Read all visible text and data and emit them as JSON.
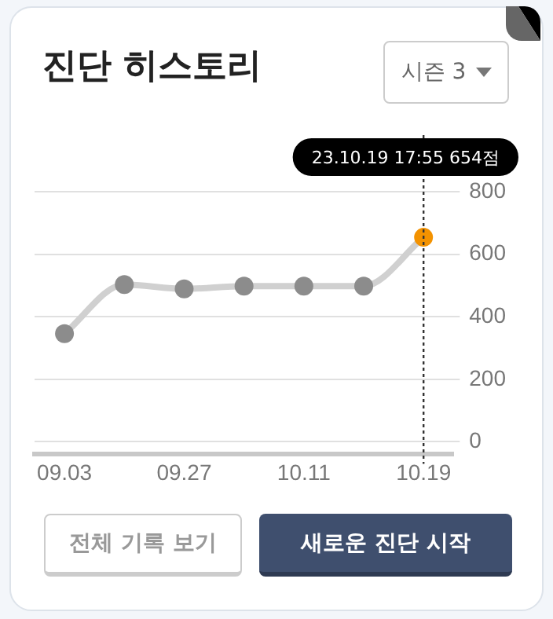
{
  "chart_data": {
    "type": "line",
    "title": "진단 히스토리",
    "subtitle": "시즌 3",
    "categories": [
      "09.03",
      null,
      "09.27",
      null,
      "10.11",
      null,
      "10.19"
    ],
    "series": [
      {
        "color": "#d0d0d0",
        "colors": [
          "#8c8c8c",
          "#8c8c8c",
          "#8c8c8c",
          "#8c8c8c",
          "#8c8c8c",
          "#8c8c8c",
          "#f39200"
        ],
        "values": [
          346,
          503,
          489,
          498,
          498,
          498,
          654
        ]
      }
    ],
    "ylim": [
      -40,
      800
    ],
    "yticks": [
      0,
      200,
      400,
      600,
      800
    ],
    "grid": "y",
    "legend": false,
    "marker": "circle",
    "line_style": "solid",
    "ref_lines": [
      {
        "axis": "x",
        "value": "10.19",
        "color": "#333333",
        "line_style": "dotted"
      }
    ],
    "annotations": [
      "23.10.19 17:55 654점",
      "전체 기록 보기",
      "새로운 진단 시작"
    ]
  }
}
